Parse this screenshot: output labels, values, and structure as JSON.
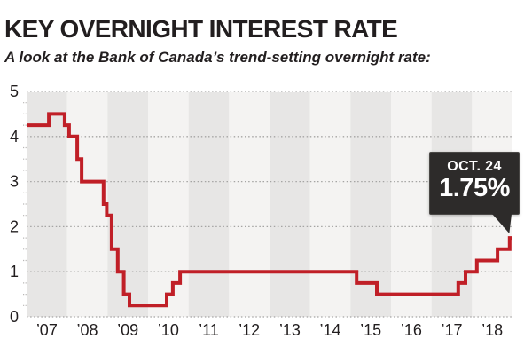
{
  "header": {
    "title": "KEY OVERNIGHT INTEREST RATE",
    "subtitle": "A look at the Bank of Canada’s trend-setting overnight rate:"
  },
  "chart_data": {
    "type": "line",
    "step": true,
    "title": "KEY OVERNIGHT INTEREST RATE",
    "subtitle": "A look at the Bank of Canada’s trend-setting overnight rate:",
    "axes": {
      "ylim": [
        0,
        5
      ],
      "y_ticks": [
        0,
        1,
        2,
        3,
        4,
        5
      ],
      "y_minor_tick_step": 0.25,
      "xlim_years": [
        2007,
        2019
      ],
      "x_tick_labels": [
        "’07",
        "’08",
        "’09",
        "’10",
        "’11",
        "’12",
        "’13",
        "’14",
        "’15",
        "’16",
        "’17",
        "’18"
      ],
      "grid": "dotted-horizontal",
      "background": "alternating-year-bands"
    },
    "series": [
      {
        "name": "overnight-rate",
        "unit": "%",
        "points": [
          {
            "year": 2007.0,
            "rate": 4.25
          },
          {
            "year": 2007.55,
            "rate": 4.5
          },
          {
            "year": 2007.94,
            "rate": 4.25
          },
          {
            "year": 2008.05,
            "rate": 4.0
          },
          {
            "year": 2008.25,
            "rate": 3.5
          },
          {
            "year": 2008.36,
            "rate": 3.0
          },
          {
            "year": 2008.9,
            "rate": 2.5
          },
          {
            "year": 2008.98,
            "rate": 2.25
          },
          {
            "year": 2009.1,
            "rate": 1.5
          },
          {
            "year": 2009.25,
            "rate": 1.0
          },
          {
            "year": 2009.4,
            "rate": 0.5
          },
          {
            "year": 2009.54,
            "rate": 0.25
          },
          {
            "year": 2010.46,
            "rate": 0.5
          },
          {
            "year": 2010.61,
            "rate": 0.75
          },
          {
            "year": 2010.79,
            "rate": 1.0
          },
          {
            "year": 2015.15,
            "rate": 0.75
          },
          {
            "year": 2015.65,
            "rate": 0.5
          },
          {
            "year": 2017.66,
            "rate": 0.75
          },
          {
            "year": 2017.84,
            "rate": 1.0
          },
          {
            "year": 2018.12,
            "rate": 1.25
          },
          {
            "year": 2018.63,
            "rate": 1.5
          },
          {
            "year": 2018.93,
            "rate": 1.75
          }
        ]
      }
    ],
    "annotation": {
      "line1": "OCT. 24",
      "line2": "1.75%",
      "points_to": {
        "year": 2018.93,
        "rate": 1.75
      }
    },
    "colors": {
      "line": "#c01f27",
      "band_dark": "#e7e6e5",
      "band_light": "#f4f3f2",
      "grid": "#a5a4a3",
      "minor_tick": "#b9b7b6",
      "text": "#221e1f",
      "callout_bg": "#2d2b2a",
      "callout_text": "#ffffff"
    }
  }
}
